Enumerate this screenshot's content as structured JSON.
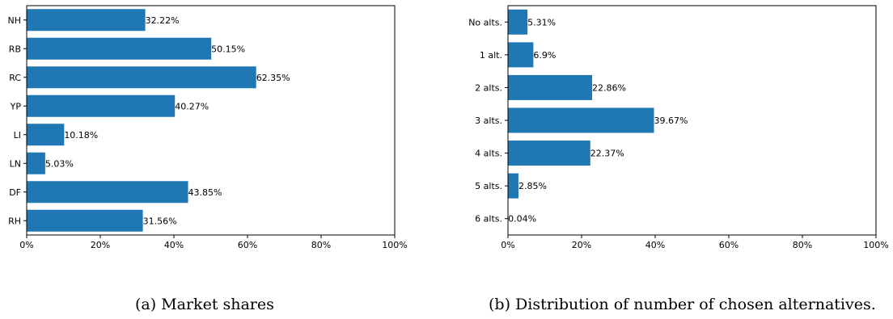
{
  "captions": {
    "a": "(a) Market shares",
    "b": "(b) Distribution of number of chosen alternatives."
  },
  "chart_data": [
    {
      "type": "bar",
      "orientation": "horizontal",
      "categories": [
        "NH",
        "RB",
        "RC",
        "YP",
        "LI",
        "LN",
        "DF",
        "RH"
      ],
      "values": [
        32.22,
        50.15,
        62.35,
        40.27,
        10.18,
        5.03,
        43.85,
        31.56
      ],
      "value_labels": [
        "32.22%",
        "50.15%",
        "62.35%",
        "40.27%",
        "10.18%",
        "5.03%",
        "43.85%",
        "31.56%"
      ],
      "xlim": [
        0,
        100
      ],
      "xticks": [
        0,
        20,
        40,
        60,
        80,
        100
      ],
      "xtick_labels": [
        "0%",
        "20%",
        "40%",
        "60%",
        "80%",
        "100%"
      ],
      "bar_color": "#1f77b4",
      "grid": false
    },
    {
      "type": "bar",
      "orientation": "horizontal",
      "categories": [
        "No alts.",
        "1 alt.",
        "2 alts.",
        "3 alts.",
        "4 alts.",
        "5 alts.",
        "6 alts."
      ],
      "values": [
        5.31,
        6.9,
        22.86,
        39.67,
        22.37,
        2.85,
        0.04
      ],
      "value_labels": [
        "5.31%",
        "6.9%",
        "22.86%",
        "39.67%",
        "22.37%",
        "2.85%",
        "0.04%"
      ],
      "xlim": [
        0,
        100
      ],
      "xticks": [
        0,
        20,
        40,
        60,
        80,
        100
      ],
      "xtick_labels": [
        "0%",
        "20%",
        "40%",
        "60%",
        "80%",
        "100%"
      ],
      "bar_color": "#1f77b4",
      "grid": false
    }
  ]
}
